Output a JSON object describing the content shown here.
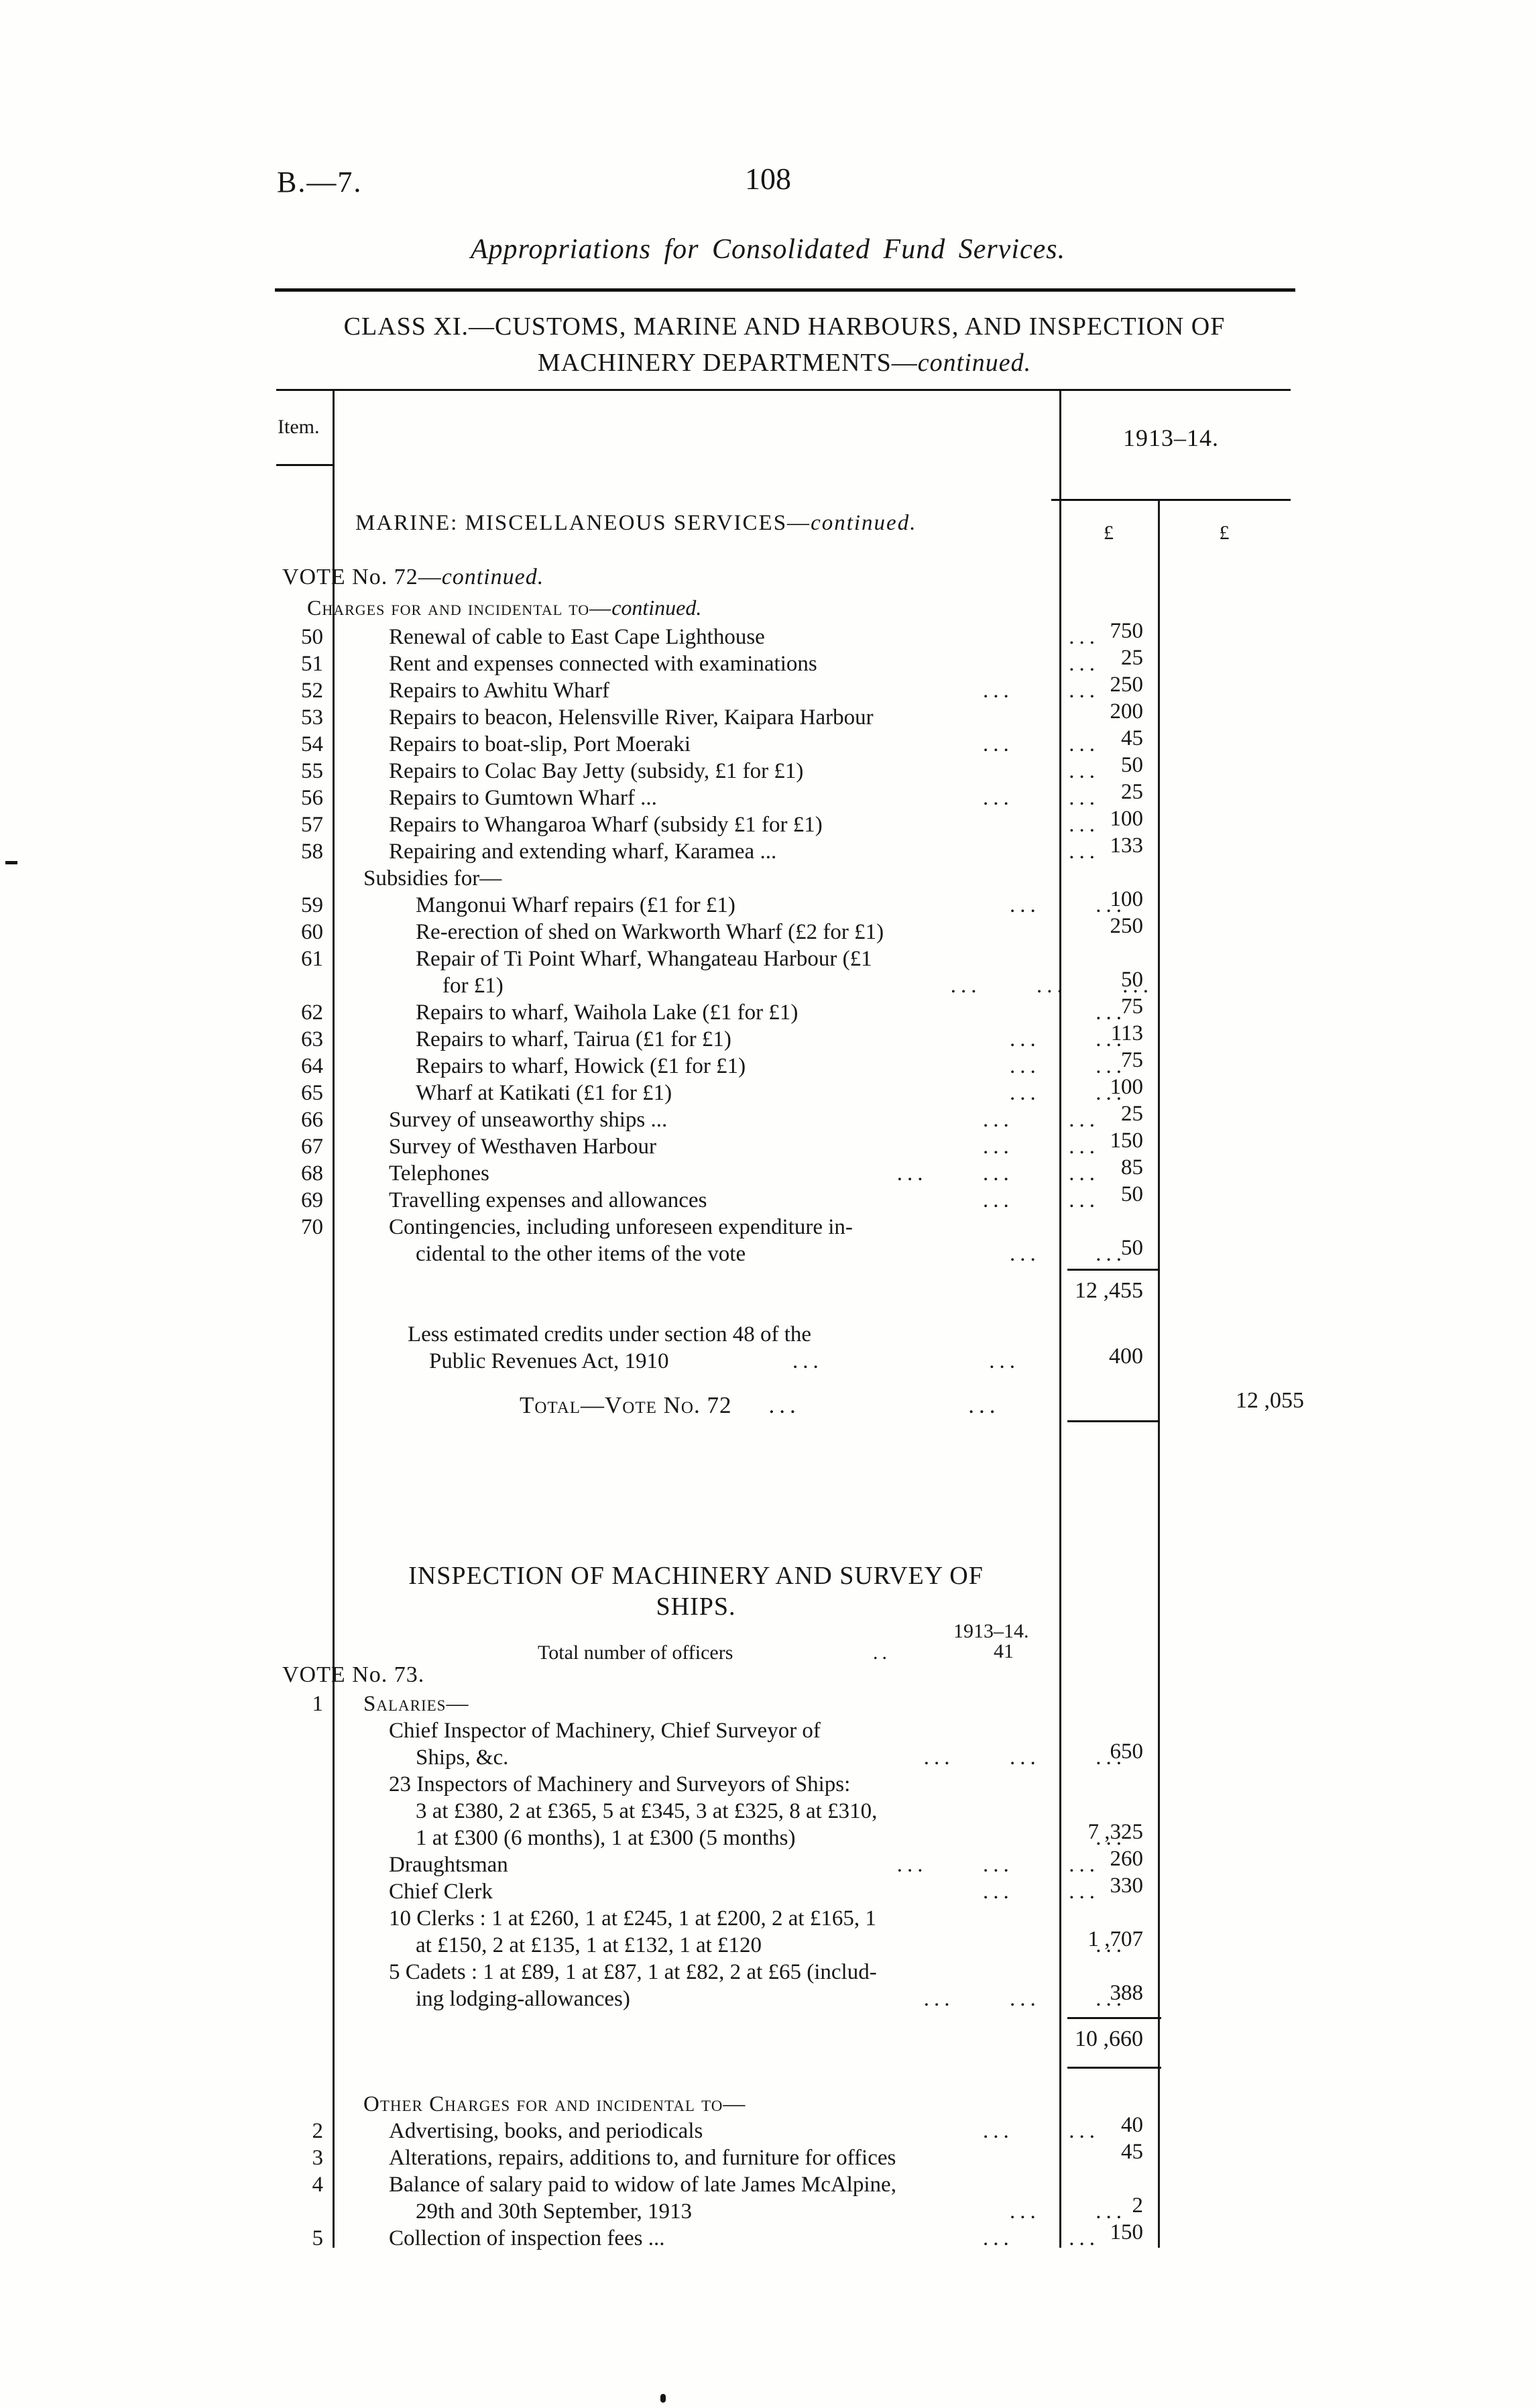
{
  "page": {
    "doc_ref": "B.—7.",
    "page_number": "108",
    "running_title": "Appropriations for Consolidated Fund Services."
  },
  "class_heading": {
    "line1": "CLASS XI.—CUSTOMS, MARINE AND HARBOURS, AND INSPECTION OF",
    "line2": "MACHINERY DEPARTMENTS—",
    "line2_cont": "continued."
  },
  "table": {
    "item_header": "Item.",
    "year_header": "1913–14.",
    "col1_currency": "£",
    "col2_currency": "£",
    "section1": {
      "title": "MARINE: MISCELLANEOUS SERVICES—",
      "title_cont": "continued.",
      "vote": "VOTE No. 72—",
      "vote_cont": "continued.",
      "charges_heading": "Charges for and incidental to—",
      "charges_cont": "continued.",
      "rows": [
        {
          "item": "50",
          "ind": 2,
          "text": "Renewal of cable to East Cape Lighthouse",
          "dots": "...",
          "amt": "750"
        },
        {
          "item": "51",
          "ind": 2,
          "text": "Rent and expenses connected with examinations",
          "dots": "...",
          "amt": "25"
        },
        {
          "item": "52",
          "ind": 2,
          "text": "Repairs to Awhitu Wharf",
          "dots": "...  ...",
          "amt": "250"
        },
        {
          "item": "53",
          "ind": 2,
          "text": "Repairs to beacon, Helensville River, Kaipara Harbour",
          "amt": "200"
        },
        {
          "item": "54",
          "ind": 2,
          "text": "Repairs to boat-slip, Port Moeraki",
          "dots": "...  ...",
          "amt": "45"
        },
        {
          "item": "55",
          "ind": 2,
          "text": "Repairs to Colac Bay Jetty (subsidy, £1 for £1)",
          "dots": "...",
          "amt": "50"
        },
        {
          "item": "56",
          "ind": 2,
          "text": "Repairs to Gumtown Wharf ...",
          "dots": "...  ...",
          "amt": "25"
        },
        {
          "item": "57",
          "ind": 2,
          "text": "Repairs to Whangaroa Wharf (subsidy £1 for £1)",
          "dots": "...",
          "amt": "100"
        },
        {
          "item": "58",
          "ind": 2,
          "text": "Repairing and extending wharf, Karamea ...",
          "dots": "...",
          "amt": "133"
        },
        {
          "ind": 1,
          "text": "Subsidies for—"
        },
        {
          "item": "59",
          "ind": 3,
          "text": "Mangonui Wharf repairs (£1 for £1)",
          "dots": "...  ...",
          "amt": "100"
        },
        {
          "item": "60",
          "ind": 3,
          "text": "Re-erection of shed on Warkworth Wharf (£2 for £1)",
          "amt": "250"
        },
        {
          "item": "61",
          "ind": 3,
          "text": "Repair of Ti Point Wharf, Whangateau Harbour (£1"
        },
        {
          "ind": 4,
          "text": "for £1)",
          "dots": "...  ...  ...",
          "amt": "50"
        },
        {
          "item": "62",
          "ind": 3,
          "text": "Repairs to wharf, Waihola Lake (£1 for £1)",
          "dots": "...",
          "amt": "75"
        },
        {
          "item": "63",
          "ind": 3,
          "text": "Repairs to wharf, Tairua (£1 for £1)",
          "dots": "...  ...",
          "amt": "113"
        },
        {
          "item": "64",
          "ind": 3,
          "text": "Repairs to wharf, Howick (£1 for £1)",
          "dots": "...  ...",
          "amt": "75"
        },
        {
          "item": "65",
          "ind": 3,
          "text": "Wharf at Katikati (£1 for £1)",
          "dots": "...  ...",
          "amt": "100"
        },
        {
          "item": "66",
          "ind": 2,
          "text": "Survey of unseaworthy ships ...",
          "dots": "...  ...",
          "amt": "25"
        },
        {
          "item": "67",
          "ind": 2,
          "text": "Survey of Westhaven Harbour",
          "dots": "...  ...",
          "amt": "150"
        },
        {
          "item": "68",
          "ind": 2,
          "text": "Telephones",
          "dots": "...  ...  ...",
          "amt": "85"
        },
        {
          "item": "69",
          "ind": 2,
          "text": "Travelling expenses and allowances",
          "dots": "...  ...",
          "amt": "50"
        },
        {
          "item": "70",
          "ind": 2,
          "text": "Contingencies, including unforeseen expenditure in-"
        },
        {
          "ind": 3,
          "text": "cidental to the other items of the vote",
          "dots": "...  ...",
          "amt": "50"
        }
      ],
      "subtotal": "12 ,455",
      "less_line1": "Less estimated credits under section 48 of the",
      "less_line2": "Public Revenues Act, 1910",
      "less_dots": "...      ...",
      "less_amount": "400",
      "total_label": "Total—Vote No. 72",
      "total_dots": "...      ...",
      "total_amount": "12 ,055"
    },
    "section2": {
      "title_line1": "INSPECTION OF MACHINERY AND SURVEY OF",
      "title_line2": "SHIPS.",
      "year": "1913–14.",
      "officers_label": "Total number of officers",
      "officers_dots": "..",
      "officers_value": "41",
      "vote": "VOTE No. 73.",
      "salary_rows": [
        {
          "item": "1",
          "ind": 1,
          "sc": true,
          "text": "Salaries—"
        },
        {
          "ind": 2,
          "text": "Chief Inspector of Machinery, Chief Surveyor of"
        },
        {
          "ind": 3,
          "text": "Ships, &c.",
          "dots": "...  ...  ...",
          "amt": "650"
        },
        {
          "ind": 2,
          "text": "23 Inspectors of Machinery and Surveyors of Ships:"
        },
        {
          "ind": 3,
          "text": "3 at £380, 2 at £365, 5 at £345, 3 at £325, 8 at £310,"
        },
        {
          "ind": 3,
          "text": "1 at £300 (6 months), 1 at £300 (5 months)",
          "dots": "...",
          "amt": "7 ,325"
        },
        {
          "ind": 2,
          "text": "Draughtsman",
          "dots": "...  ...  ...",
          "amt": "260"
        },
        {
          "ind": 2,
          "text": "Chief Clerk",
          "dots": "...  ...",
          "amt": "330"
        },
        {
          "ind": 2,
          "text": "10 Clerks : 1 at £260, 1 at £245, 1 at £200, 2 at £165, 1"
        },
        {
          "ind": 3,
          "text": "at £150, 2 at £135, 1 at £132, 1 at £120",
          "dots": "...",
          "amt": "1 ,707"
        },
        {
          "ind": 2,
          "text": "5 Cadets : 1 at £89, 1 at £87, 1 at £82, 2 at £65 (includ-"
        },
        {
          "ind": 3,
          "text": "ing lodging-allowances)",
          "dots": "...  ...  ...",
          "amt": "388"
        }
      ],
      "salaries_subtotal": "10 ,660",
      "other_rows": [
        {
          "ind": 1,
          "sc": true,
          "text": "Other Charges for and incidental to—"
        },
        {
          "item": "2",
          "ind": 2,
          "text": "Advertising, books, and periodicals",
          "dots": "...  ...",
          "amt": "40"
        },
        {
          "item": "3",
          "ind": 2,
          "text": "Alterations, repairs, additions to, and furniture for offices",
          "amt": "45"
        },
        {
          "item": "4",
          "ind": 2,
          "text": "Balance of salary paid to widow of late James McAlpine,"
        },
        {
          "ind": 3,
          "text": "29th and 30th September, 1913",
          "dots": "...  ...",
          "amt": "2"
        },
        {
          "item": "5",
          "ind": 2,
          "text": "Collection of inspection fees ...",
          "dots": "...  ...",
          "amt": "150"
        }
      ]
    }
  }
}
